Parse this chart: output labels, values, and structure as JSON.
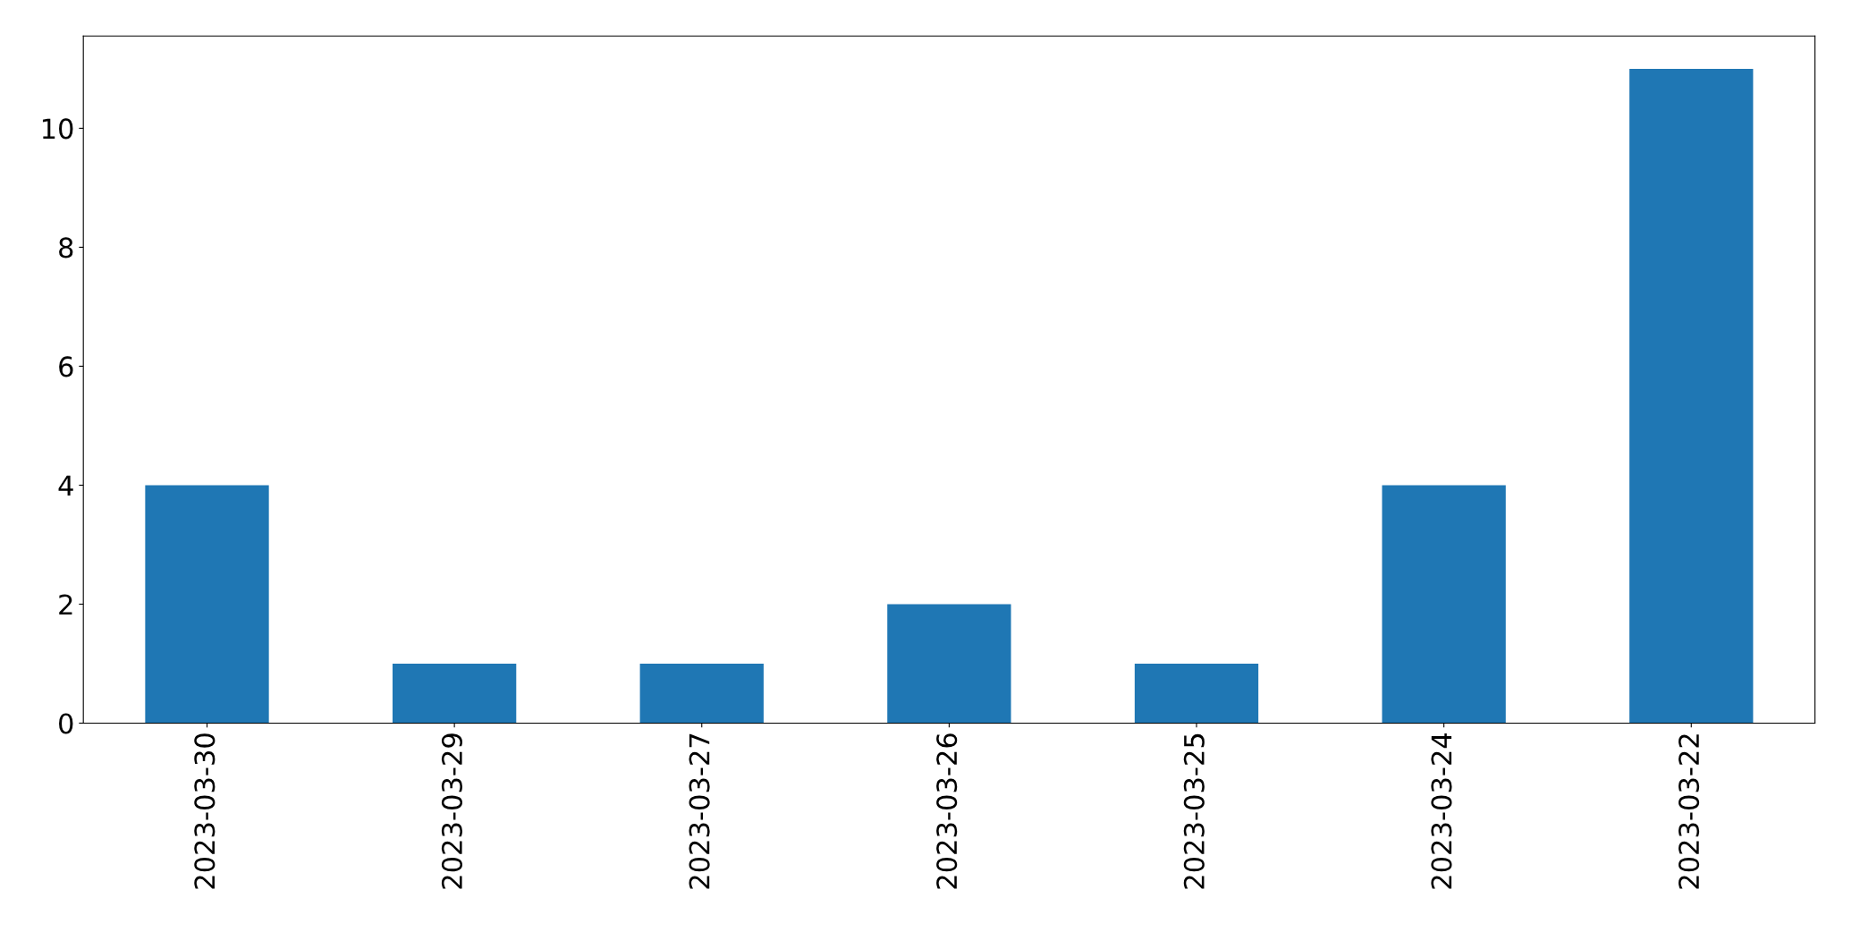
{
  "chart_data": {
    "type": "bar",
    "categories": [
      "2023-03-30",
      "2023-03-29",
      "2023-03-27",
      "2023-03-26",
      "2023-03-25",
      "2023-03-24",
      "2023-03-22"
    ],
    "values": [
      4,
      1,
      1,
      2,
      1,
      4,
      11
    ],
    "color": "#1f77b4",
    "ylim": [
      0,
      11.55
    ],
    "yticks": [
      0,
      2,
      4,
      6,
      8,
      10
    ],
    "grid": false
  }
}
